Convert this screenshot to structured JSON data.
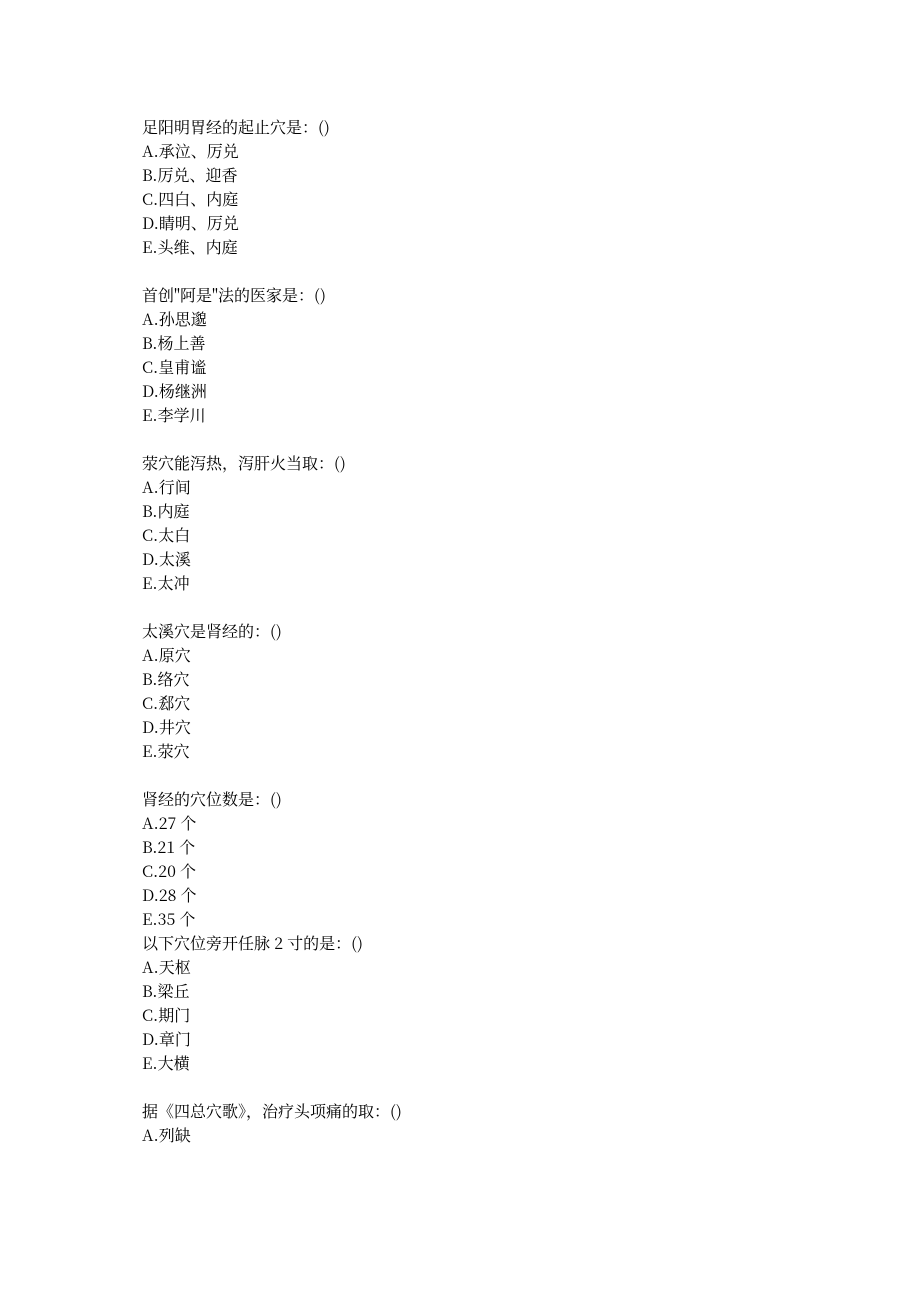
{
  "questions": [
    {
      "stem": "足阳明胃经的起止穴是：()",
      "options": [
        "A.承泣、厉兑",
        "B.厉兑、迎香",
        "C.四白、内庭",
        "D.睛明、厉兑",
        "E.头维、内庭"
      ]
    },
    {
      "stem": "首创\"阿是\"法的医家是：()",
      "options": [
        "A.孙思邈",
        "B.杨上善",
        "C.皇甫谧",
        "D.杨继洲",
        "E.李学川"
      ]
    },
    {
      "stem": "荥穴能泻热，泻肝火当取：()",
      "options": [
        "A.行间",
        "B.内庭",
        "C.太白",
        "D.太溪",
        "E.太冲"
      ]
    },
    {
      "stem": "太溪穴是肾经的：()",
      "options": [
        "A.原穴",
        "B.络穴",
        "C.郄穴",
        "D.井穴",
        "E.荥穴"
      ]
    },
    {
      "stem": "肾经的穴位数是：()",
      "options": [
        "A.27 个",
        "B.21 个",
        "C.20 个",
        "D.28 个",
        "E.35 个"
      ]
    },
    {
      "stem": "以下穴位旁开任脉 2 寸的是：()",
      "options": [
        "A.天枢",
        "B.梁丘",
        "C.期门",
        "D.章门",
        "E.大横"
      ]
    },
    {
      "stem": "据《四总穴歌》，治疗头项痛的取：()",
      "options": [
        "A.列缺"
      ]
    }
  ],
  "layout": {
    "tight_after_index": 4
  }
}
